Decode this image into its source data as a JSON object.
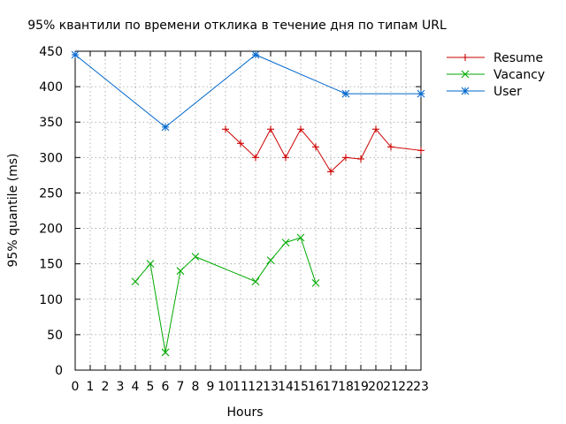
{
  "chart_data": {
    "type": "line",
    "title": "95% квантили по времени отклика в течение дня по типам URL",
    "xlabel": "Hours",
    "ylabel": "95% quantile (ms)",
    "xlim": [
      0,
      23
    ],
    "ylim": [
      0,
      450
    ],
    "x_ticks": [
      0,
      1,
      2,
      3,
      4,
      5,
      6,
      7,
      8,
      9,
      10,
      11,
      12,
      13,
      14,
      15,
      16,
      17,
      18,
      19,
      20,
      21,
      22,
      23
    ],
    "y_ticks": [
      0,
      50,
      100,
      150,
      200,
      250,
      300,
      350,
      400,
      450
    ],
    "grid": true,
    "legend_position": "top-right",
    "series": [
      {
        "name": "Resume",
        "color": "#cc0000",
        "marker": "plus",
        "x": [
          10,
          11,
          12,
          13,
          14,
          15,
          16,
          17,
          18,
          19,
          20,
          21,
          23
        ],
        "y": [
          340,
          320,
          300,
          340,
          300,
          340,
          315,
          280,
          300,
          298,
          340,
          315,
          310
        ]
      },
      {
        "name": "Vacancy",
        "color": "#00aa00",
        "marker": "x",
        "x": [
          4,
          5,
          6,
          7,
          8,
          12,
          13,
          14,
          15,
          16
        ],
        "y": [
          125,
          150,
          25,
          140,
          160,
          125,
          155,
          180,
          187,
          123
        ]
      },
      {
        "name": "User",
        "color": "#0066cc",
        "marker": "star",
        "x": [
          0,
          6,
          12,
          18,
          23
        ],
        "y": [
          445,
          343,
          445,
          390,
          390
        ]
      }
    ]
  }
}
